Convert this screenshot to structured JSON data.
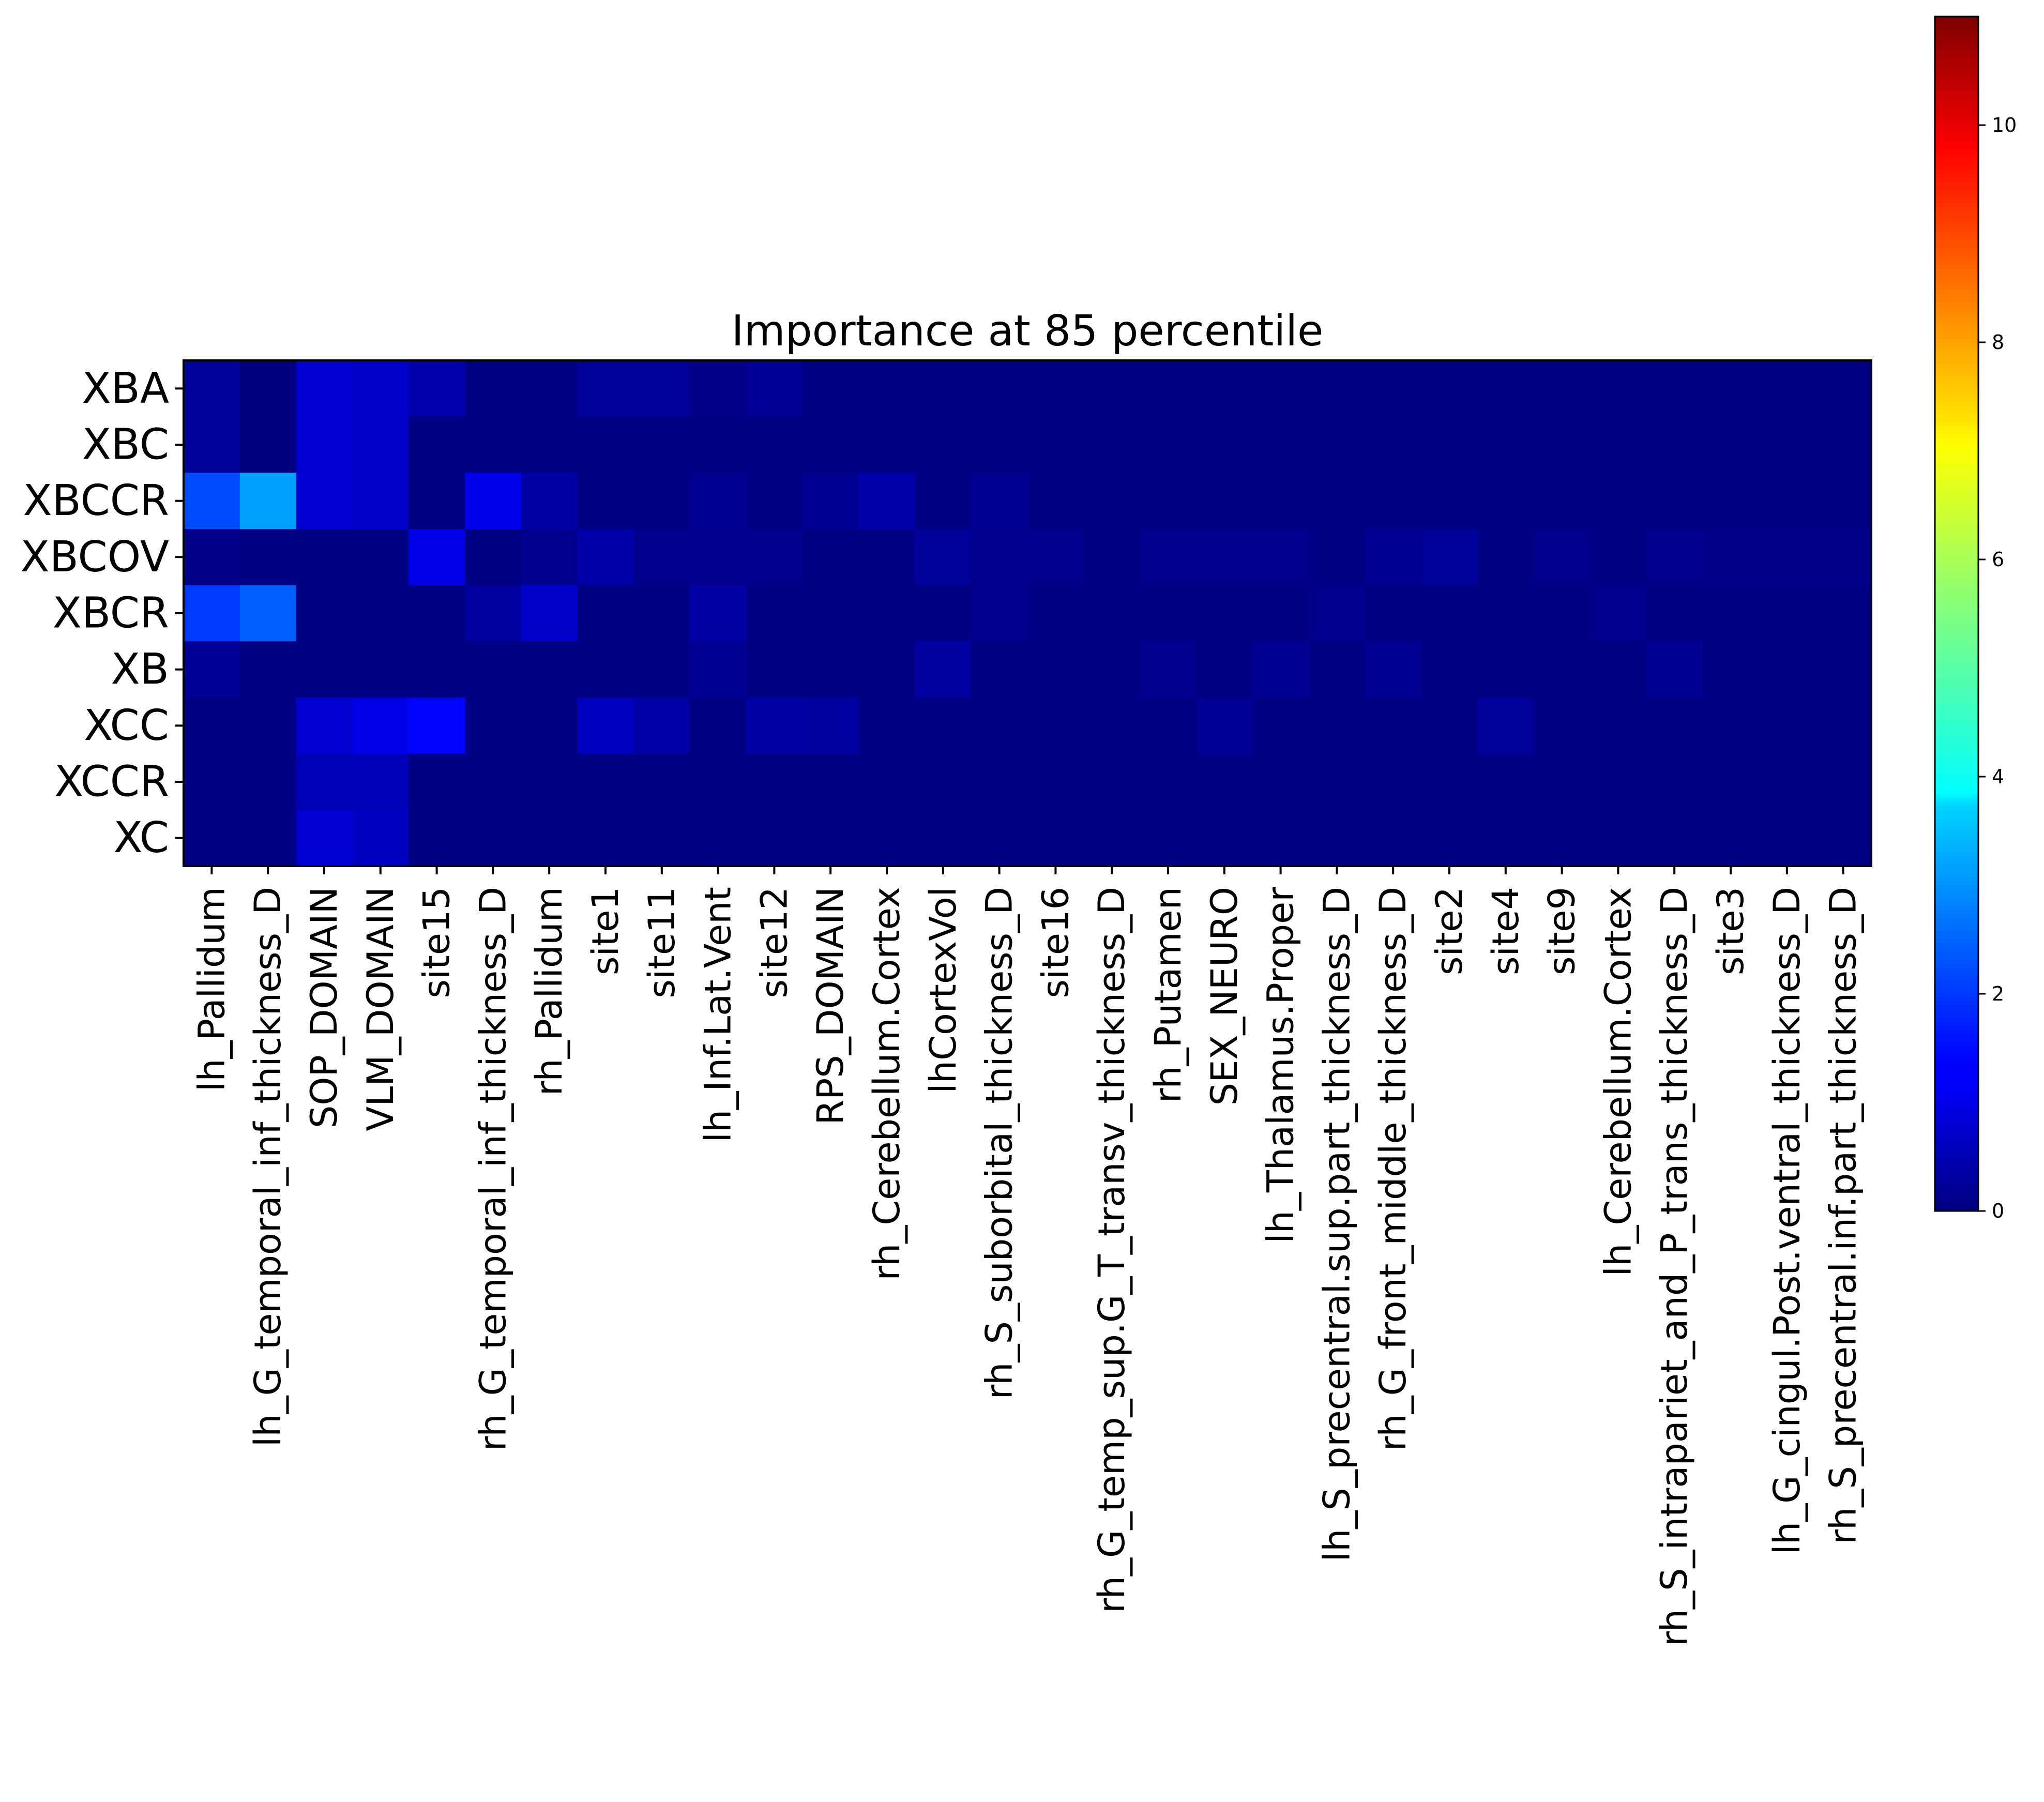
{
  "chart_data": {
    "type": "heatmap",
    "title": "Importance at 85 percentile",
    "rows": [
      "XBA",
      "XBC",
      "XBCCR",
      "XBCOV",
      "XBCR",
      "XB",
      "XCC",
      "XCCR",
      "XC"
    ],
    "columns": [
      "lh_Pallidum",
      "lh_G_temporal_inf_thickness_D",
      "SOP_DOMAIN",
      "VLM_DOMAIN",
      "site15",
      "rh_G_temporal_inf_thickness_D",
      "rh_Pallidum",
      "site1",
      "site11",
      "lh_Inf.Lat.Vent",
      "site12",
      "RPS_DOMAIN",
      "rh_Cerebellum.Cortex",
      "lhCortexVol",
      "rh_S_suborbital_thickness_D",
      "site16",
      "rh_G_temp_sup.G_T_transv_thickness_D",
      "rh_Putamen",
      "SEX_NEURO",
      "lh_Thalamus.Proper",
      "lh_S_precentral.sup.part_thickness_D",
      "rh_G_front_middle_thickness_D",
      "site2",
      "site4",
      "site9",
      "lh_Cerebellum.Cortex",
      "rh_S_intrapariet_and_P_trans_thickness_D",
      "site3",
      "lh_G_cingul.Post.ventral_thickness_D",
      "rh_S_precentral.inf.part_thickness_D"
    ],
    "values": [
      [
        0.3,
        0.0,
        0.9,
        0.8,
        0.5,
        0.05,
        0.05,
        0.3,
        0.3,
        0.1,
        0.25,
        0.05,
        0.05,
        0.05,
        0.05,
        0.05,
        0.05,
        0.05,
        0.05,
        0.05,
        0.05,
        0.05,
        0.05,
        0.05,
        0.05,
        0.05,
        0.05,
        0.05,
        0.05,
        0.05
      ],
      [
        0.3,
        0.0,
        0.9,
        0.8,
        0.05,
        0.05,
        0.05,
        0.05,
        0.05,
        0.05,
        0.05,
        0.05,
        0.05,
        0.05,
        0.05,
        0.05,
        0.05,
        0.05,
        0.05,
        0.05,
        0.05,
        0.05,
        0.05,
        0.05,
        0.05,
        0.05,
        0.05,
        0.05,
        0.05,
        0.05
      ],
      [
        2.2,
        3.1,
        0.9,
        0.8,
        0.05,
        1.2,
        0.4,
        0.05,
        0.05,
        0.2,
        0.05,
        0.2,
        0.45,
        0.05,
        0.2,
        0.05,
        0.05,
        0.05,
        0.05,
        0.05,
        0.05,
        0.05,
        0.05,
        0.05,
        0.05,
        0.05,
        0.05,
        0.05,
        0.05,
        0.05
      ],
      [
        0.1,
        0.05,
        0.05,
        0.05,
        1.1,
        0.05,
        0.15,
        0.45,
        0.15,
        0.15,
        0.15,
        0.05,
        0.05,
        0.3,
        0.15,
        0.15,
        0.05,
        0.15,
        0.15,
        0.15,
        0.05,
        0.2,
        0.3,
        0.05,
        0.15,
        0.05,
        0.15,
        0.1,
        0.1,
        0.1
      ],
      [
        2.0,
        2.4,
        0.05,
        0.05,
        0.05,
        0.35,
        0.8,
        0.05,
        0.05,
        0.4,
        0.05,
        0.05,
        0.05,
        0.05,
        0.15,
        0.05,
        0.05,
        0.05,
        0.05,
        0.05,
        0.15,
        0.05,
        0.05,
        0.05,
        0.05,
        0.15,
        0.05,
        0.05,
        0.05,
        0.05
      ],
      [
        0.25,
        0.05,
        0.05,
        0.05,
        0.05,
        0.05,
        0.05,
        0.05,
        0.05,
        0.2,
        0.05,
        0.05,
        0.05,
        0.35,
        0.05,
        0.05,
        0.05,
        0.15,
        0.05,
        0.2,
        0.05,
        0.2,
        0.05,
        0.05,
        0.05,
        0.05,
        0.2,
        0.05,
        0.05,
        0.05
      ],
      [
        0.05,
        0.05,
        0.9,
        1.1,
        1.4,
        0.05,
        0.05,
        0.7,
        0.45,
        0.05,
        0.4,
        0.35,
        0.05,
        0.05,
        0.05,
        0.05,
        0.05,
        0.05,
        0.25,
        0.05,
        0.05,
        0.05,
        0.05,
        0.3,
        0.05,
        0.05,
        0.05,
        0.05,
        0.05,
        0.05
      ],
      [
        0.05,
        0.05,
        0.6,
        0.6,
        0.05,
        0.05,
        0.05,
        0.05,
        0.05,
        0.05,
        0.05,
        0.05,
        0.05,
        0.05,
        0.05,
        0.05,
        0.05,
        0.05,
        0.05,
        0.05,
        0.05,
        0.05,
        0.05,
        0.05,
        0.05,
        0.05,
        0.05,
        0.05,
        0.05,
        0.05
      ],
      [
        0.05,
        0.05,
        0.9,
        0.7,
        0.05,
        0.05,
        0.05,
        0.05,
        0.05,
        0.05,
        0.05,
        0.05,
        0.05,
        0.05,
        0.05,
        0.05,
        0.05,
        0.05,
        0.05,
        0.05,
        0.05,
        0.05,
        0.05,
        0.05,
        0.05,
        0.05,
        0.05,
        0.05,
        0.05,
        0.05
      ]
    ],
    "colormap": "jet",
    "colorbar": {
      "range": [
        0,
        11
      ],
      "ticks": [
        0,
        2,
        4,
        6,
        8,
        10
      ]
    }
  }
}
